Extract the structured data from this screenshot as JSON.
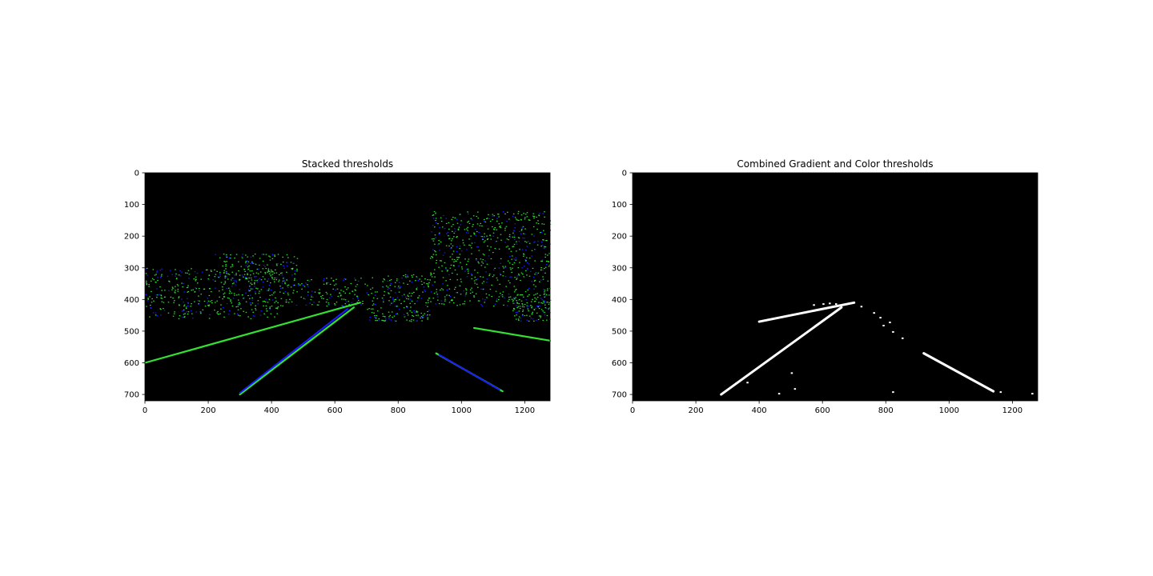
{
  "chart_data": [
    {
      "type": "image",
      "title": "Stacked thresholds",
      "xlim": [
        0,
        1280
      ],
      "ylim": [
        720,
        0
      ],
      "xticks": [
        0,
        200,
        400,
        600,
        800,
        1000,
        1200
      ],
      "yticks": [
        0,
        100,
        200,
        300,
        400,
        500,
        600,
        700
      ],
      "channels": {
        "gradient": "#33e033",
        "color": "#1a1aff"
      },
      "lane_lines": [
        {
          "channel": "gradient",
          "x": [
            0,
            680
          ],
          "y": [
            600,
            410
          ]
        },
        {
          "channel": "gradient",
          "x": [
            300,
            660
          ],
          "y": [
            700,
            425
          ]
        },
        {
          "channel": "color",
          "x": [
            300,
            640
          ],
          "y": [
            695,
            430
          ]
        },
        {
          "channel": "gradient",
          "x": [
            920,
            1130
          ],
          "y": [
            570,
            690
          ]
        },
        {
          "channel": "color",
          "x": [
            930,
            1120
          ],
          "y": [
            575,
            685
          ]
        },
        {
          "channel": "gradient",
          "x": [
            1040,
            1280
          ],
          "y": [
            490,
            530
          ]
        }
      ]
    },
    {
      "type": "image",
      "title": "Combined Gradient and Color thresholds",
      "xlim": [
        0,
        1280
      ],
      "ylim": [
        720,
        0
      ],
      "xticks": [
        0,
        200,
        400,
        600,
        800,
        1000,
        1200
      ],
      "yticks": [
        0,
        100,
        200,
        300,
        400,
        500,
        600,
        700
      ],
      "channels": {
        "combined": "#ffffff"
      },
      "lane_lines": [
        {
          "channel": "combined",
          "x": [
            280,
            660
          ],
          "y": [
            700,
            425
          ]
        },
        {
          "channel": "combined",
          "x": [
            400,
            700
          ],
          "y": [
            470,
            410
          ]
        },
        {
          "channel": "combined",
          "x": [
            920,
            1140
          ],
          "y": [
            570,
            690
          ]
        }
      ]
    }
  ]
}
